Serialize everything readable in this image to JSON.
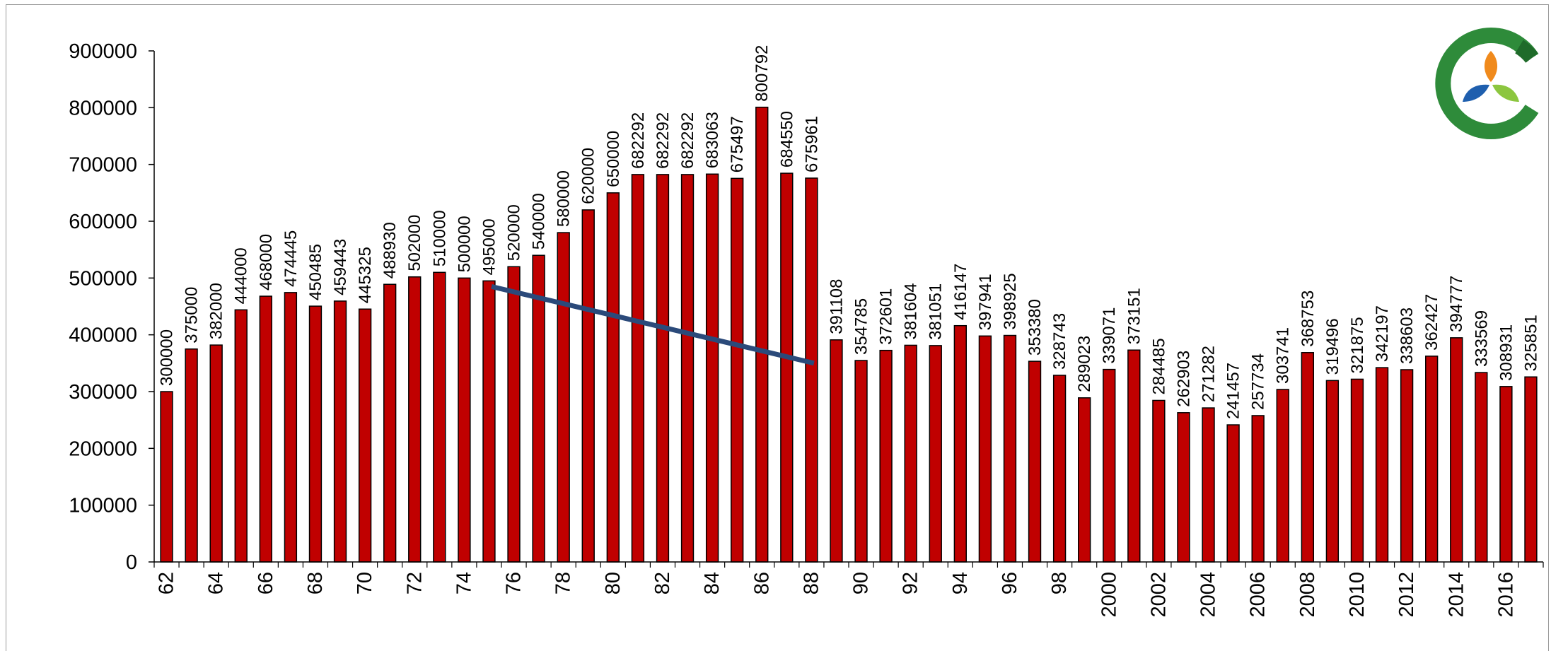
{
  "chart_data": {
    "type": "bar",
    "categories": [
      "62",
      "63",
      "64",
      "65",
      "66",
      "67",
      "68",
      "69",
      "70",
      "71",
      "72",
      "73",
      "74",
      "75",
      "76",
      "77",
      "78",
      "79",
      "80",
      "81",
      "82",
      "83",
      "84",
      "85",
      "86",
      "87",
      "88",
      "89",
      "90",
      "91",
      "92",
      "93",
      "94",
      "95",
      "96",
      "97",
      "98",
      "99",
      "2000",
      "2001",
      "2002",
      "2003",
      "2004",
      "2005",
      "2006",
      "2007",
      "2008",
      "2009",
      "2010",
      "2011",
      "2012",
      "2013",
      "2014",
      "2015",
      "2016",
      "2017"
    ],
    "tick_labels": [
      "62",
      "64",
      "66",
      "68",
      "70",
      "72",
      "74",
      "76",
      "78",
      "80",
      "82",
      "84",
      "86",
      "88",
      "90",
      "92",
      "94",
      "96",
      "98",
      "2000",
      "2002",
      "2004",
      "2006",
      "2008",
      "2010",
      "2012",
      "2014",
      "2016"
    ],
    "values": [
      300000,
      375000,
      382000,
      444000,
      468000,
      474445,
      450485,
      459443,
      445325,
      488930,
      502000,
      510000,
      500000,
      495000,
      520000,
      540000,
      580000,
      620000,
      650000,
      682292,
      682292,
      682292,
      683063,
      675497,
      800792,
      684550,
      675961,
      391108,
      354785,
      372601,
      381604,
      381051,
      416147,
      397941,
      398925,
      353380,
      328743,
      289023,
      339071,
      373151,
      284485,
      262903,
      271282,
      241457,
      257734,
      303741,
      368753,
      319496,
      321875,
      342197,
      338603,
      362427,
      394777,
      333569,
      308931,
      325851
    ],
    "data_labels": [
      "300000",
      "375000",
      "382000",
      "444000",
      "468000",
      "474445",
      "450485",
      "459443",
      "445325",
      "488930",
      "502000",
      "510000",
      "500000",
      "495000",
      "520000",
      "540000",
      "580000",
      "620000",
      "650000",
      "682292",
      "682292",
      "682292",
      "683063",
      "675497",
      "800792",
      "684550",
      "675961",
      "391108",
      "354785",
      "372601",
      "381604",
      "381051",
      "416147",
      "397941",
      "398925",
      "353380",
      "328743",
      "289023",
      "339071",
      "373151",
      "284485",
      "262903",
      "271282",
      "241457",
      "257734",
      "303741",
      "368753",
      "319496",
      "321875",
      "342197",
      "338603",
      "362427",
      "394777",
      "333569",
      "308931",
      "325851"
    ],
    "y_ticks": [
      "0",
      "100000",
      "200000",
      "300000",
      "400000",
      "500000",
      "600000",
      "700000",
      "800000",
      "900000"
    ],
    "ylim": [
      0,
      900000
    ],
    "title": "",
    "xlabel": "",
    "ylabel": "",
    "trend_line": {
      "start_category": "75",
      "start_value": 485000,
      "end_category": "88",
      "end_value": 350000
    },
    "bar_color": "#c00000",
    "trend_line_color": "#2b4a7a",
    "grid": false,
    "legend": "none"
  },
  "logo": {
    "name": "company-logo",
    "colors": [
      "#2e8b3a",
      "#f08a1c",
      "#1f5fae",
      "#8cc63f"
    ]
  }
}
